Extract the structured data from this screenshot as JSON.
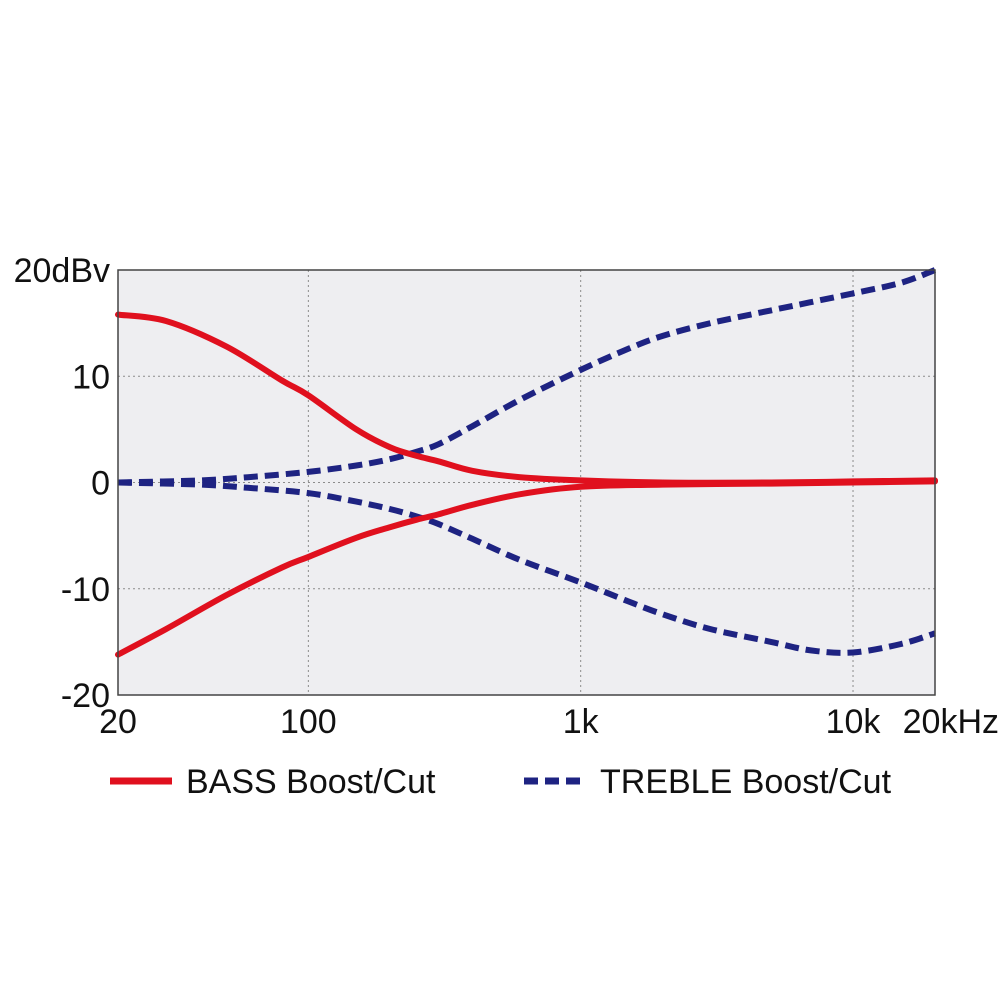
{
  "chart_data": {
    "type": "line",
    "title": "",
    "xlabel": "",
    "ylabel": "",
    "x_scale": "log",
    "xlim": [
      20,
      20000
    ],
    "ylim": [
      -20,
      20
    ],
    "grid": true,
    "legend_position": "bottom",
    "x_ticks": [
      {
        "value": 20,
        "label": "20"
      },
      {
        "value": 100,
        "label": "100"
      },
      {
        "value": 1000,
        "label": "1k"
      },
      {
        "value": 10000,
        "label": "10k"
      },
      {
        "value": 20000,
        "label": "20kHz"
      }
    ],
    "y_ticks": [
      {
        "value": 20,
        "label": "20dBv"
      },
      {
        "value": 10,
        "label": "10"
      },
      {
        "value": 0,
        "label": "0"
      },
      {
        "value": -10,
        "label": "-10"
      },
      {
        "value": -20,
        "label": "-20"
      }
    ],
    "series": [
      {
        "name": "BASS Boost/Cut",
        "color": "#e0101e",
        "dash": "solid",
        "curves": [
          {
            "role": "boost",
            "points": [
              [
                20,
                15.8
              ],
              [
                30,
                15.2
              ],
              [
                50,
                12.8
              ],
              [
                80,
                9.6
              ],
              [
                100,
                8.2
              ],
              [
                150,
                5.0
              ],
              [
                200,
                3.3
              ],
              [
                250,
                2.5
              ],
              [
                300,
                2.0
              ],
              [
                400,
                1.1
              ],
              [
                600,
                0.5
              ],
              [
                1000,
                0.2
              ],
              [
                2000,
                0.0
              ],
              [
                5000,
                0.0
              ],
              [
                10000,
                0.1
              ],
              [
                20000,
                0.2
              ]
            ]
          },
          {
            "role": "cut",
            "points": [
              [
                20,
                -16.2
              ],
              [
                30,
                -13.8
              ],
              [
                50,
                -10.6
              ],
              [
                80,
                -8.0
              ],
              [
                100,
                -7.0
              ],
              [
                150,
                -5.2
              ],
              [
                200,
                -4.2
              ],
              [
                250,
                -3.5
              ],
              [
                300,
                -3.0
              ],
              [
                400,
                -2.1
              ],
              [
                600,
                -1.1
              ],
              [
                1000,
                -0.4
              ],
              [
                2000,
                -0.2
              ],
              [
                5000,
                -0.1
              ],
              [
                10000,
                0.0
              ],
              [
                20000,
                0.1
              ]
            ]
          }
        ]
      },
      {
        "name": "TREBLE Boost/Cut",
        "color": "#1e2382",
        "dash": "dashed",
        "curves": [
          {
            "role": "boost",
            "points": [
              [
                20,
                0.0
              ],
              [
                40,
                0.2
              ],
              [
                60,
                0.5
              ],
              [
                100,
                1.0
              ],
              [
                150,
                1.6
              ],
              [
                200,
                2.2
              ],
              [
                250,
                2.9
              ],
              [
                300,
                3.6
              ],
              [
                400,
                5.3
              ],
              [
                600,
                7.8
              ],
              [
                1000,
                10.6
              ],
              [
                1500,
                12.6
              ],
              [
                2000,
                13.8
              ],
              [
                3000,
                15.0
              ],
              [
                5000,
                16.2
              ],
              [
                10000,
                17.8
              ],
              [
                15000,
                18.8
              ],
              [
                20000,
                20.0
              ]
            ]
          },
          {
            "role": "cut",
            "points": [
              [
                20,
                0.0
              ],
              [
                40,
                -0.2
              ],
              [
                60,
                -0.5
              ],
              [
                100,
                -1.0
              ],
              [
                150,
                -1.8
              ],
              [
                200,
                -2.5
              ],
              [
                250,
                -3.2
              ],
              [
                300,
                -3.9
              ],
              [
                400,
                -5.3
              ],
              [
                600,
                -7.3
              ],
              [
                1000,
                -9.4
              ],
              [
                1500,
                -11.2
              ],
              [
                2000,
                -12.4
              ],
              [
                3000,
                -13.8
              ],
              [
                5000,
                -15.0
              ],
              [
                7000,
                -15.8
              ],
              [
                10000,
                -16.0
              ],
              [
                15000,
                -15.2
              ],
              [
                20000,
                -14.2
              ]
            ]
          }
        ]
      }
    ]
  }
}
